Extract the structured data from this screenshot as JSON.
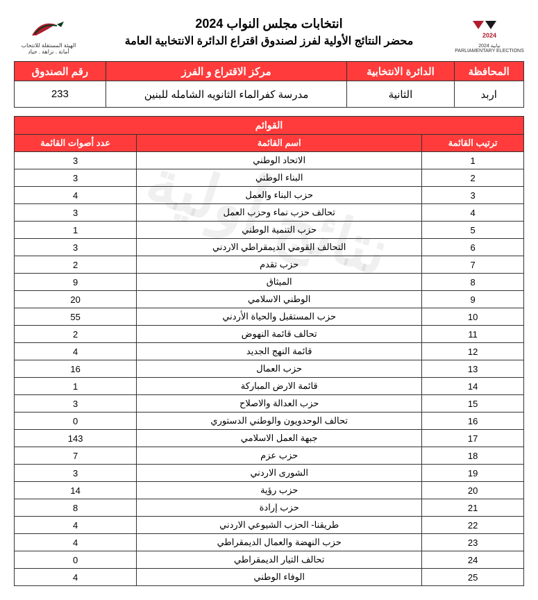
{
  "header": {
    "title_main": "انتخابات مجلس النواب 2024",
    "title_sub": "محضر النتائج الأولية لفرز لصندوق اقتراع الدائرة الانتخابية العامة",
    "logo_right_line1": "الهيئة المستقلة",
    "logo_right_line2": "للانتخاب",
    "logo_right_line3": "أمانة . نزاهة . حياد",
    "logo_left_line1": "نيابية",
    "logo_left_line2": "2024",
    "logo_left_line3": "PARLIAMENTARY ELECTIONS"
  },
  "info": {
    "headers": {
      "governorate": "المحافظة",
      "district": "الدائرة الانتخابية",
      "center": "مركز الاقتراع و الفرز",
      "box": "رقم الصندوق"
    },
    "values": {
      "governorate": "اربد",
      "district": "الثانية",
      "center": "مدرسة كفرالماء الثانويه الشامله للبنين",
      "box": "233"
    }
  },
  "lists_section": {
    "title": "القوائم",
    "headers": {
      "rank": "ترتيب القائمة",
      "name": "اسم القائمة",
      "votes": "عدد أصوات القائمة"
    },
    "rows": [
      {
        "rank": "1",
        "name": "الاتحاد الوطني",
        "votes": "3"
      },
      {
        "rank": "2",
        "name": "البناء الوطني",
        "votes": "3"
      },
      {
        "rank": "3",
        "name": "حزب البناء والعمل",
        "votes": "4"
      },
      {
        "rank": "4",
        "name": "تحالف حزب نماء وحزب العمل",
        "votes": "3"
      },
      {
        "rank": "5",
        "name": "حزب التنمية الوطني",
        "votes": "1"
      },
      {
        "rank": "6",
        "name": "التحالف القومي الديمقراطي الاردني",
        "votes": "3"
      },
      {
        "rank": "7",
        "name": "حزب تقدم",
        "votes": "2"
      },
      {
        "rank": "8",
        "name": "الميثاق",
        "votes": "9"
      },
      {
        "rank": "9",
        "name": "الوطني الاسلامي",
        "votes": "20"
      },
      {
        "rank": "10",
        "name": "حزب المستقبل والحياة الأردني",
        "votes": "55"
      },
      {
        "rank": "11",
        "name": "تحالف قائمة النهوض",
        "votes": "2"
      },
      {
        "rank": "12",
        "name": "قائمة النهج الجديد",
        "votes": "4"
      },
      {
        "rank": "13",
        "name": "حزب العمال",
        "votes": "16"
      },
      {
        "rank": "14",
        "name": "قائمة الارض المباركة",
        "votes": "1"
      },
      {
        "rank": "15",
        "name": "حزب العدالة والاصلاح",
        "votes": "3"
      },
      {
        "rank": "16",
        "name": "تحالف الوحدويون والوطني الدستوري",
        "votes": "0"
      },
      {
        "rank": "17",
        "name": "جبهة العمل الاسلامي",
        "votes": "143"
      },
      {
        "rank": "18",
        "name": "حزب عزم",
        "votes": "7"
      },
      {
        "rank": "19",
        "name": "الشورى الاردني",
        "votes": "3"
      },
      {
        "rank": "20",
        "name": "حزب رؤية",
        "votes": "14"
      },
      {
        "rank": "21",
        "name": "حزب إرادة",
        "votes": "8"
      },
      {
        "rank": "22",
        "name": "طريقنا- الحزب الشيوعي الاردني",
        "votes": "4"
      },
      {
        "rank": "23",
        "name": "حزب النهضة والعمال الديمقراطي",
        "votes": "4"
      },
      {
        "rank": "24",
        "name": "تحالف التيار الديمقراطي",
        "votes": "0"
      },
      {
        "rank": "25",
        "name": "الوفاء الوطني",
        "votes": "4"
      }
    ]
  },
  "watermark_text": "نتائج أولية",
  "colors": {
    "header_bg": "#ff3b3b",
    "header_fg": "#ffffff",
    "border": "#333333",
    "accent": "#b01c2e"
  }
}
